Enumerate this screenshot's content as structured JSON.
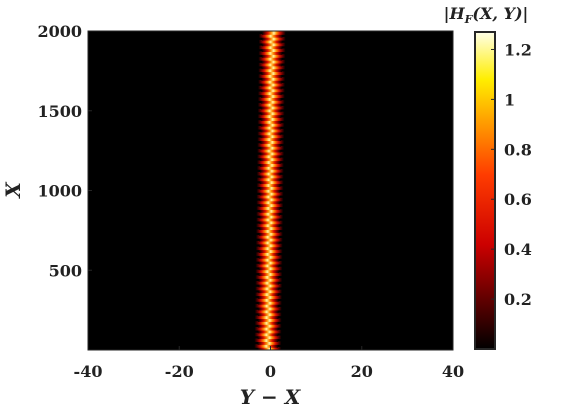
{
  "chart_data": {
    "type": "heatmap",
    "title": "",
    "xlabel": "Y − X",
    "ylabel": "X",
    "xlim": [
      -40,
      40
    ],
    "ylim": [
      0,
      2000
    ],
    "xticks": [
      -40,
      -20,
      0,
      20,
      40
    ],
    "yticks": [
      500,
      1000,
      1500,
      2000
    ],
    "colormap": "hot",
    "background_color": "#000000",
    "beam": {
      "center_at_x0": -0.6,
      "center_at_x2000": 0.4,
      "half_width": 2.6,
      "peak_value": 1.27,
      "stripe_period_x": 18
    },
    "colorbar": {
      "title": "|H_F(X,Y)|",
      "title_parts": [
        "|",
        "H",
        "F",
        "(X, Y)|"
      ],
      "range": [
        0,
        1.27
      ],
      "ticks": [
        0.2,
        0.4,
        0.6,
        0.8,
        1,
        1.2
      ]
    }
  }
}
